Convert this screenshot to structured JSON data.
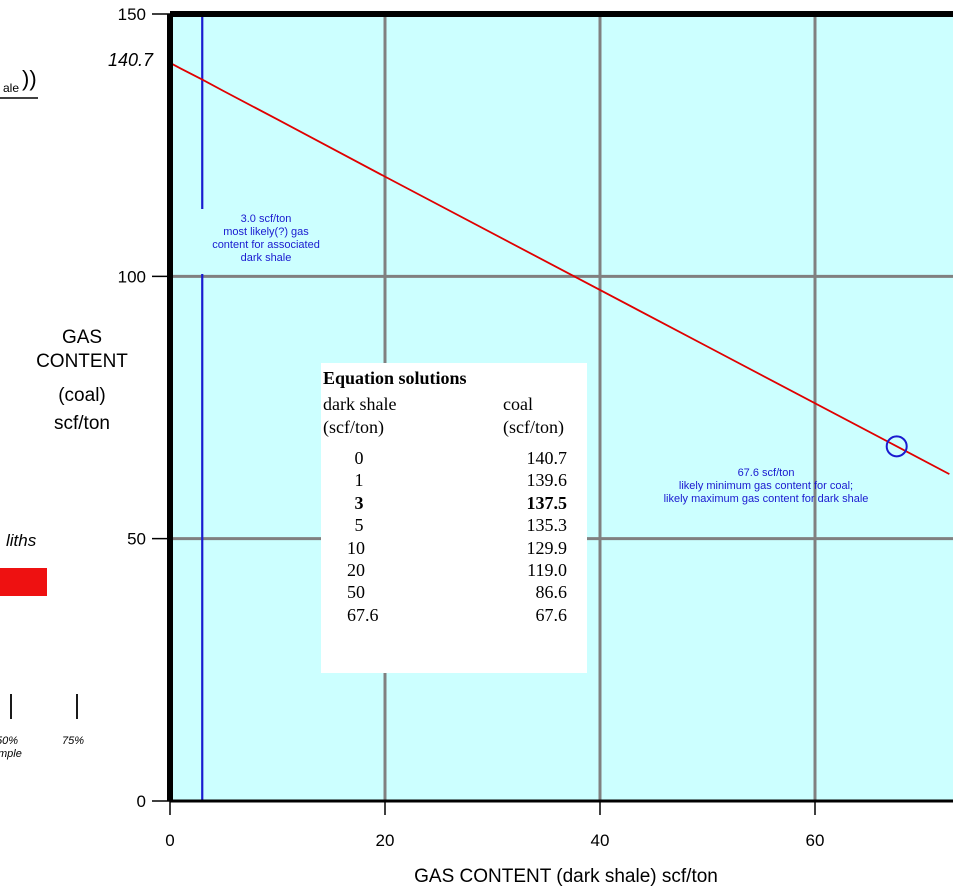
{
  "chart_data": {
    "type": "line",
    "xlabel": "GAS CONTENT (dark shale) scf/ton",
    "ylabel": [
      "GAS",
      "CONTENT",
      "(coal)",
      "scf/ton"
    ],
    "xlim": [
      0,
      72.5
    ],
    "ylim": [
      0,
      150
    ],
    "x_ticks": [
      "0",
      "20",
      "40",
      "60"
    ],
    "y_ticks": [
      "0",
      "50",
      "100",
      "150"
    ],
    "grid": true,
    "y_intercept_label": "140.7",
    "series": [
      {
        "color": "#e00000",
        "x": [
          0,
          1,
          3,
          5,
          10,
          20,
          50,
          67.6,
          72.5
        ],
        "y": [
          140.7,
          139.6,
          137.5,
          135.3,
          129.9,
          119.0,
          86.6,
          67.6,
          62.3
        ]
      }
    ],
    "vertical_marker": {
      "x": 3.0,
      "color": "#1a1ad0",
      "label": [
        "3.0 scf/ton",
        "most likely(?) gas",
        "content for associated",
        "dark shale"
      ]
    },
    "point_marker": {
      "x": 67.6,
      "y": 67.6,
      "color": "#1a1ad0",
      "label": [
        "67.6 scf/ton",
        "likely minimum gas content for coal;",
        "likely maximum gas content for dark shale"
      ]
    },
    "table": {
      "title": "Equation solutions",
      "col1_header": [
        "dark shale",
        "(scf/ton)"
      ],
      "col2_header": [
        "coal",
        "(scf/ton)"
      ],
      "rows": [
        {
          "shale": "0",
          "coal": "140.7",
          "bold": false
        },
        {
          "shale": "1",
          "coal": "139.6",
          "bold": false
        },
        {
          "shale": "3",
          "coal": "137.5",
          "bold": true
        },
        {
          "shale": "5",
          "coal": "135.3",
          "bold": false
        },
        {
          "shale": "10",
          "coal": "129.9",
          "bold": false
        },
        {
          "shale": "20",
          "coal": "119.0",
          "bold": false
        },
        {
          "shale": "50",
          "coal": "86.6",
          "bold": false
        },
        {
          "shale": "67.6",
          "coal": "67.6",
          "bold": false
        }
      ]
    }
  },
  "left_fragments": {
    "ale": "ale",
    "paren": "))",
    "liths": "liths",
    "p50": "50%",
    "p75": "75%",
    "mple": "mple",
    "liths_bar_color": "#ee1111"
  },
  "colors": {
    "plot_bg": "#ccffff",
    "grid": "#808080",
    "frame": "#000000",
    "red_line": "#e00000",
    "blue": "#1a1ad0"
  }
}
